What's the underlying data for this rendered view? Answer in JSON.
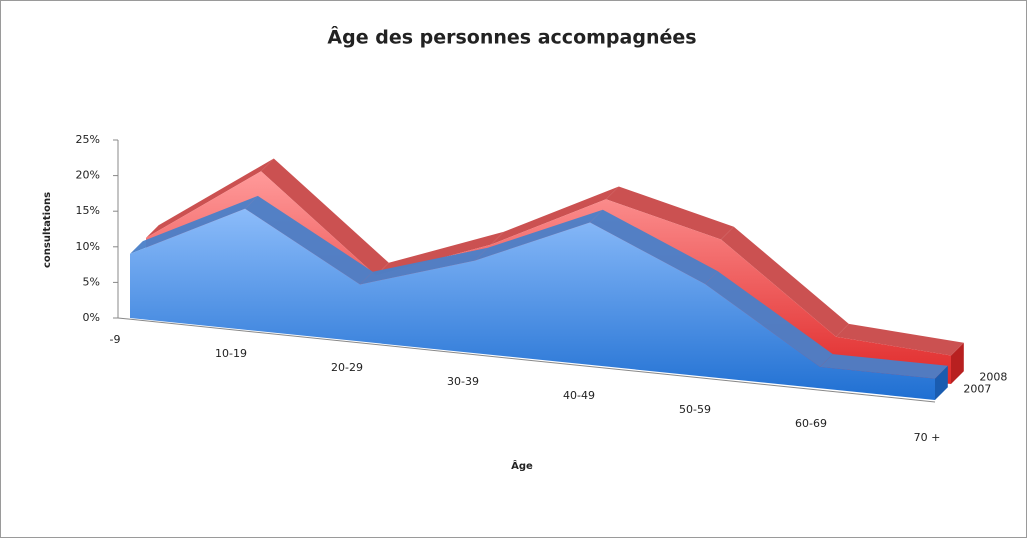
{
  "chart_data": {
    "type": "area3d",
    "title": "Âge des personnes accompagnées",
    "x_label": "Âge",
    "y_label": "consultations",
    "categories": [
      "-9",
      "10-19",
      "20-29",
      "30-39",
      "40-49",
      "50-59",
      "60-69",
      "70 +"
    ],
    "series": [
      {
        "name": "2007",
        "color": "#3d8ae8",
        "values": [
          9,
          17,
          8,
          13,
          20,
          13,
          3,
          3
        ]
      },
      {
        "name": "2008",
        "color": "#f05050",
        "values": [
          9,
          20,
          7,
          13,
          21,
          17,
          5,
          4
        ]
      }
    ],
    "ylim": [
      0,
      25
    ],
    "yticks": [
      {
        "value": 0,
        "label": "0%"
      },
      {
        "value": 5,
        "label": "5%"
      },
      {
        "value": 10,
        "label": "10%"
      },
      {
        "value": 15,
        "label": "15%"
      },
      {
        "value": 20,
        "label": "20%"
      },
      {
        "value": 25,
        "label": "25%"
      }
    ]
  }
}
